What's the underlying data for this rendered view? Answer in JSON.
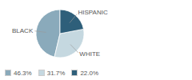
{
  "chart_data": {
    "type": "pie",
    "categories": [
      "BLACK",
      "WHITE",
      "HISPANIC"
    ],
    "values": [
      46.3,
      31.7,
      22.0
    ],
    "value_labels": [
      "46.3%",
      "31.7%",
      "22.0%"
    ],
    "colors": [
      "#8aaabb",
      "#c5d8e0",
      "#2e5f7a"
    ],
    "legend": "lower left"
  }
}
